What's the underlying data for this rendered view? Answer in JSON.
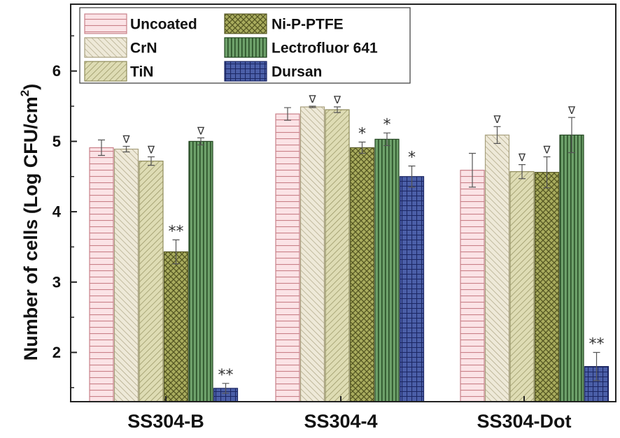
{
  "chart_data": {
    "type": "bar",
    "categories": [
      "SS304-B",
      "SS304-4",
      "SS304-Dot"
    ],
    "ylabel": "Number of cells (Log CFU/cm²)",
    "ylabel_parts": [
      "Number of cells (Log CFU/cm",
      "2",
      ")"
    ],
    "ylim": [
      1.3,
      6.95
    ],
    "yticks": [
      2,
      3,
      4,
      5,
      6
    ],
    "yticks_text": [
      "2",
      "3",
      "4",
      "5",
      "6"
    ],
    "legend_placement": "top-left",
    "grid": false,
    "series": [
      {
        "name": "Uncoated",
        "values": [
          4.91,
          5.39,
          4.59
        ],
        "errors": [
          0.11,
          0.09,
          0.24
        ],
        "annotations": [
          "",
          "",
          ""
        ],
        "fill": "#fbe3e6",
        "stroke": "#c98088",
        "pattern": "horizontal"
      },
      {
        "name": "CrN",
        "values": [
          4.89,
          5.49,
          5.09
        ],
        "errors": [
          0.04,
          0.01,
          0.12
        ],
        "annotations": [
          "∇",
          "∇",
          "∇"
        ],
        "fill": "#eee9d8",
        "stroke": "#a8a07e",
        "pattern": "diag-up"
      },
      {
        "name": "TiN",
        "values": [
          4.72,
          5.45,
          4.57
        ],
        "errors": [
          0.06,
          0.04,
          0.1
        ],
        "annotations": [
          "∇",
          "∇",
          "∇"
        ],
        "fill": "#dedcb4",
        "stroke": "#8f8b5a",
        "pattern": "diag-down"
      },
      {
        "name": "Ni-P-PTFE",
        "values": [
          3.43,
          4.91,
          4.56
        ],
        "errors": [
          0.17,
          0.08,
          0.22
        ],
        "annotations": [
          "**",
          "*",
          "∇"
        ],
        "fill": "#a9ac5e",
        "stroke": "#545622",
        "pattern": "crosshatch"
      },
      {
        "name": "Lectrofluor 641",
        "values": [
          5.0,
          5.03,
          5.09
        ],
        "errors": [
          0.05,
          0.09,
          0.25
        ],
        "annotations": [
          "∇",
          "*",
          "∇"
        ],
        "fill": "#6da06a",
        "stroke": "#21451f",
        "pattern": "vertical"
      },
      {
        "name": "Dursan",
        "values": [
          1.49,
          4.5,
          1.8
        ],
        "errors": [
          0.07,
          0.15,
          0.2
        ],
        "annotations": [
          "**",
          "*",
          "**"
        ],
        "fill": "#4b5fa8",
        "stroke": "#1c2763",
        "pattern": "grid"
      }
    ]
  }
}
